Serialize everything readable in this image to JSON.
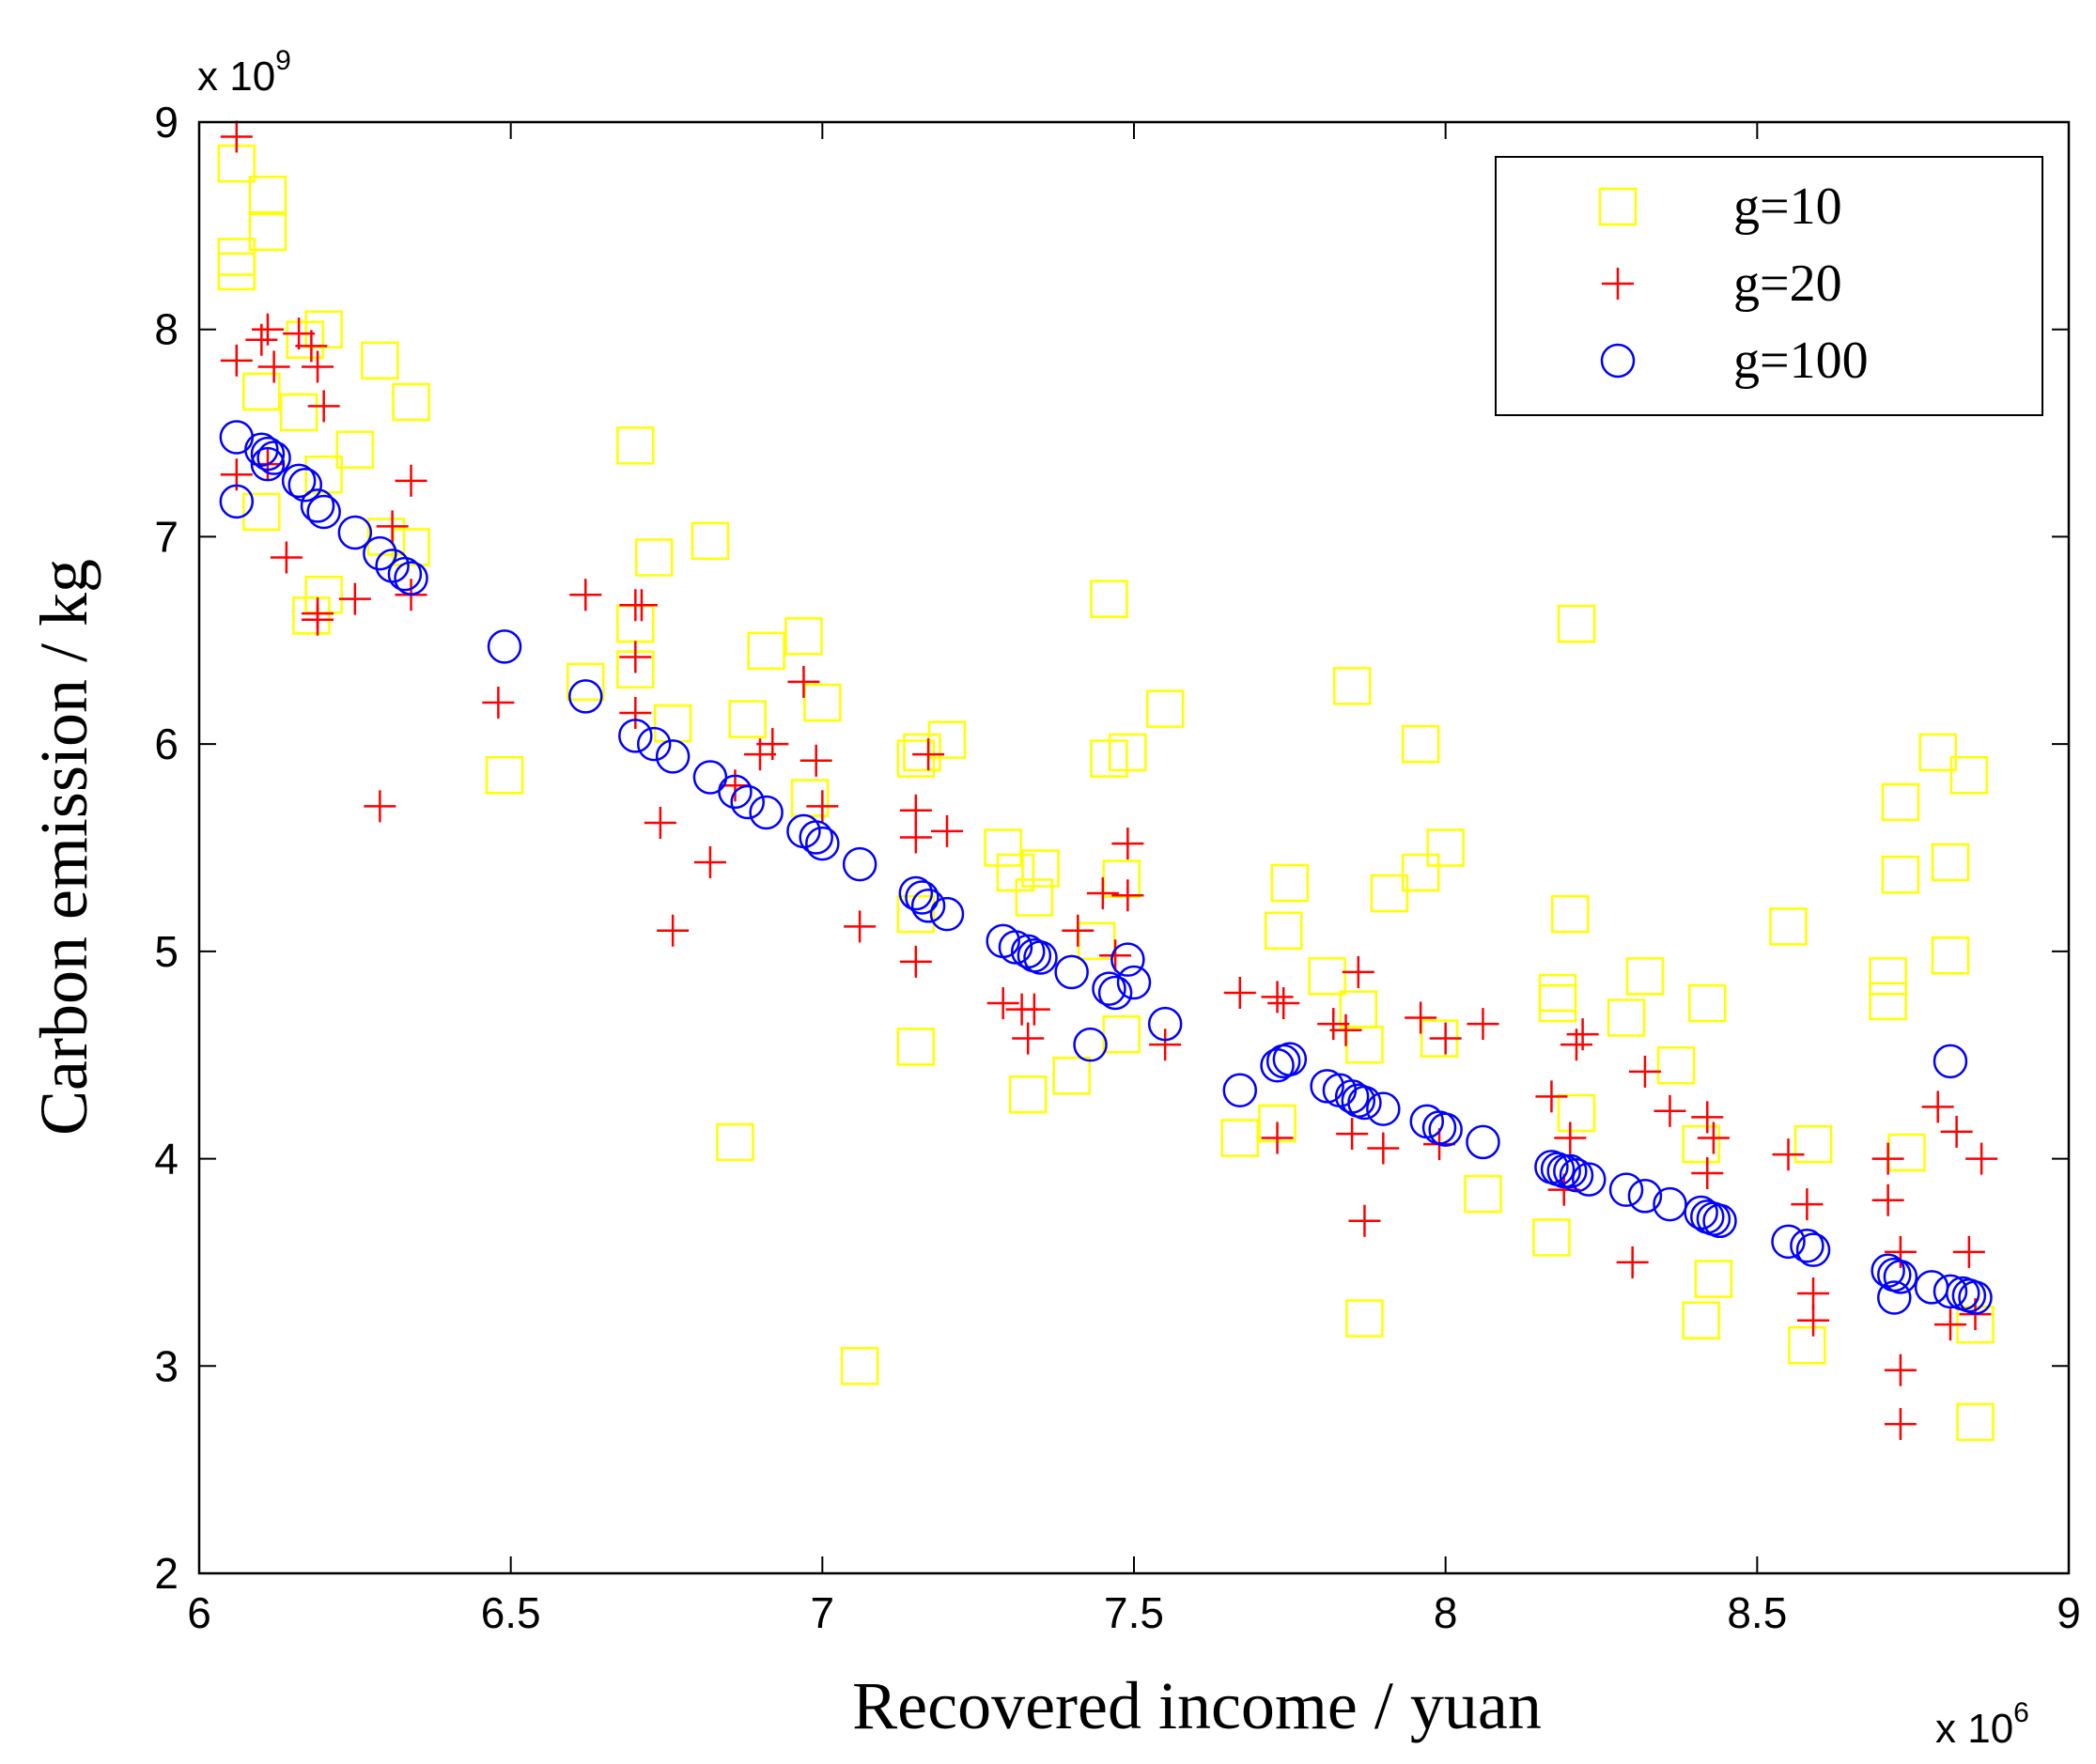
{
  "chart_data": {
    "type": "scatter",
    "title": "",
    "xlabel": "Recovered income / yuan",
    "ylabel": "Carbon emission / kg",
    "x_multiplier_label": "x 10",
    "x_multiplier_exp": "6",
    "y_multiplier_label": "x 10",
    "y_multiplier_exp": "9",
    "xlim": [
      6,
      9
    ],
    "ylim": [
      2,
      9
    ],
    "xticks": [
      6,
      6.5,
      7,
      7.5,
      8,
      8.5,
      9
    ],
    "xtick_labels": [
      "6",
      "6.5",
      "7",
      "7.5",
      "8",
      "8.5",
      "9"
    ],
    "yticks": [
      2,
      3,
      4,
      5,
      6,
      7,
      8,
      9
    ],
    "ytick_labels": [
      "2",
      "3",
      "4",
      "5",
      "6",
      "7",
      "8",
      "9"
    ],
    "grid": false,
    "legend_position": "top-right",
    "series": [
      {
        "name": "g=10",
        "marker": "square",
        "color": "#ffff00",
        "points": [
          [
            6.06,
            8.8
          ],
          [
            6.06,
            8.35
          ],
          [
            6.06,
            8.28
          ],
          [
            6.11,
            8.65
          ],
          [
            6.11,
            8.47
          ],
          [
            6.1,
            7.7
          ],
          [
            6.17,
            7.95
          ],
          [
            6.2,
            8.0
          ],
          [
            6.16,
            7.6
          ],
          [
            6.29,
            7.85
          ],
          [
            6.34,
            7.65
          ],
          [
            6.25,
            7.42
          ],
          [
            6.1,
            7.12
          ],
          [
            6.2,
            7.3
          ],
          [
            6.3,
            7.0
          ],
          [
            6.34,
            6.95
          ],
          [
            6.2,
            6.72
          ],
          [
            6.18,
            6.62
          ],
          [
            6.49,
            5.85
          ],
          [
            6.62,
            6.3
          ],
          [
            6.7,
            7.44
          ],
          [
            6.73,
            6.9
          ],
          [
            6.7,
            6.58
          ],
          [
            6.7,
            6.36
          ],
          [
            6.76,
            6.1
          ],
          [
            6.82,
            6.98
          ],
          [
            6.88,
            6.12
          ],
          [
            6.91,
            6.45
          ],
          [
            6.97,
            6.52
          ],
          [
            7.0,
            6.2
          ],
          [
            6.98,
            5.74
          ],
          [
            7.15,
            5.93
          ],
          [
            7.16,
            5.96
          ],
          [
            7.2,
            6.02
          ],
          [
            6.86,
            4.08
          ],
          [
            7.06,
            3.0
          ],
          [
            7.15,
            5.18
          ],
          [
            7.15,
            4.54
          ],
          [
            7.29,
            5.5
          ],
          [
            7.31,
            5.38
          ],
          [
            7.35,
            5.4
          ],
          [
            7.34,
            5.26
          ],
          [
            7.33,
            4.31
          ],
          [
            7.4,
            4.4
          ],
          [
            7.46,
            6.7
          ],
          [
            7.55,
            6.17
          ],
          [
            7.46,
            5.93
          ],
          [
            7.49,
            5.96
          ],
          [
            7.48,
            5.35
          ],
          [
            7.44,
            5.05
          ],
          [
            7.48,
            4.6
          ],
          [
            7.67,
            4.1
          ],
          [
            7.73,
            4.17
          ],
          [
            7.74,
            5.1
          ],
          [
            7.75,
            5.33
          ],
          [
            7.81,
            4.88
          ],
          [
            7.85,
            6.28
          ],
          [
            7.86,
            4.72
          ],
          [
            7.87,
            4.55
          ],
          [
            7.87,
            3.23
          ],
          [
            7.91,
            5.28
          ],
          [
            7.96,
            6.0
          ],
          [
            7.96,
            5.38
          ],
          [
            8.0,
            5.5
          ],
          [
            7.99,
            4.58
          ],
          [
            8.06,
            3.83
          ],
          [
            8.21,
            6.58
          ],
          [
            8.2,
            5.18
          ],
          [
            8.18,
            4.8
          ],
          [
            8.18,
            4.75
          ],
          [
            8.21,
            4.22
          ],
          [
            8.17,
            3.62
          ],
          [
            8.29,
            4.68
          ],
          [
            8.32,
            4.88
          ],
          [
            8.37,
            4.45
          ],
          [
            8.42,
            4.75
          ],
          [
            8.41,
            4.07
          ],
          [
            8.43,
            3.42
          ],
          [
            8.41,
            3.22
          ],
          [
            8.55,
            5.12
          ],
          [
            8.59,
            4.07
          ],
          [
            8.58,
            3.1
          ],
          [
            8.71,
            4.88
          ],
          [
            8.71,
            4.76
          ],
          [
            8.73,
            5.72
          ],
          [
            8.73,
            5.37
          ],
          [
            8.74,
            4.03
          ],
          [
            8.79,
            5.96
          ],
          [
            8.81,
            5.43
          ],
          [
            8.81,
            4.98
          ],
          [
            8.84,
            5.85
          ],
          [
            8.85,
            3.2
          ],
          [
            8.85,
            2.73
          ]
        ]
      },
      {
        "name": "g=20",
        "marker": "plus",
        "color": "#ff0000",
        "points": [
          [
            6.06,
            8.93
          ],
          [
            6.06,
            7.85
          ],
          [
            6.1,
            7.95
          ],
          [
            6.11,
            8.0
          ],
          [
            6.12,
            7.82
          ],
          [
            6.16,
            7.98
          ],
          [
            6.18,
            7.92
          ],
          [
            6.19,
            7.82
          ],
          [
            6.2,
            7.63
          ],
          [
            6.06,
            7.3
          ],
          [
            6.11,
            7.35
          ],
          [
            6.14,
            6.9
          ],
          [
            6.19,
            6.6
          ],
          [
            6.19,
            6.63
          ],
          [
            6.25,
            6.7
          ],
          [
            6.31,
            7.05
          ],
          [
            6.34,
            7.27
          ],
          [
            6.34,
            6.72
          ],
          [
            6.48,
            6.2
          ],
          [
            6.29,
            5.7
          ],
          [
            6.62,
            6.72
          ],
          [
            6.7,
            6.67
          ],
          [
            6.71,
            6.67
          ],
          [
            6.7,
            6.42
          ],
          [
            6.7,
            6.15
          ],
          [
            6.74,
            5.62
          ],
          [
            6.76,
            5.1
          ],
          [
            6.82,
            5.43
          ],
          [
            6.86,
            5.8
          ],
          [
            6.9,
            5.95
          ],
          [
            6.92,
            6.0
          ],
          [
            6.97,
            6.3
          ],
          [
            6.99,
            5.92
          ],
          [
            7.0,
            5.7
          ],
          [
            7.06,
            5.12
          ],
          [
            7.15,
            5.68
          ],
          [
            7.15,
            5.55
          ],
          [
            7.17,
            5.95
          ],
          [
            7.2,
            5.58
          ],
          [
            7.15,
            4.95
          ],
          [
            7.29,
            4.75
          ],
          [
            7.32,
            4.72
          ],
          [
            7.33,
            4.58
          ],
          [
            7.34,
            4.72
          ],
          [
            7.41,
            5.1
          ],
          [
            7.45,
            5.28
          ],
          [
            7.47,
            4.98
          ],
          [
            7.49,
            5.52
          ],
          [
            7.49,
            5.27
          ],
          [
            7.55,
            4.55
          ],
          [
            7.67,
            4.8
          ],
          [
            7.73,
            4.78
          ],
          [
            7.74,
            4.75
          ],
          [
            7.73,
            4.1
          ],
          [
            7.82,
            4.65
          ],
          [
            7.84,
            4.62
          ],
          [
            7.86,
            4.9
          ],
          [
            7.85,
            4.12
          ],
          [
            7.87,
            3.7
          ],
          [
            7.9,
            4.05
          ],
          [
            7.96,
            4.68
          ],
          [
            8.0,
            4.58
          ],
          [
            8.06,
            4.65
          ],
          [
            7.99,
            4.07
          ],
          [
            8.17,
            4.3
          ],
          [
            8.2,
            4.1
          ],
          [
            8.19,
            3.85
          ],
          [
            8.21,
            4.55
          ],
          [
            8.22,
            4.6
          ],
          [
            8.32,
            4.42
          ],
          [
            8.3,
            3.5
          ],
          [
            8.36,
            4.23
          ],
          [
            8.42,
            4.2
          ],
          [
            8.42,
            3.93
          ],
          [
            8.43,
            4.1
          ],
          [
            8.55,
            4.02
          ],
          [
            8.58,
            3.78
          ],
          [
            8.59,
            3.22
          ],
          [
            8.59,
            3.35
          ],
          [
            8.71,
            4.0
          ],
          [
            8.71,
            3.8
          ],
          [
            8.73,
            3.55
          ],
          [
            8.73,
            2.98
          ],
          [
            8.73,
            2.72
          ],
          [
            8.79,
            4.25
          ],
          [
            8.82,
            4.13
          ],
          [
            8.81,
            3.2
          ],
          [
            8.84,
            3.55
          ],
          [
            8.86,
            4.0
          ],
          [
            8.85,
            3.25
          ]
        ]
      },
      {
        "name": "g=100",
        "marker": "circle",
        "color": "#0000ff",
        "points": [
          [
            6.06,
            7.48
          ],
          [
            6.1,
            7.42
          ],
          [
            6.11,
            7.4
          ],
          [
            6.12,
            7.38
          ],
          [
            6.11,
            7.35
          ],
          [
            6.16,
            7.27
          ],
          [
            6.17,
            7.25
          ],
          [
            6.19,
            7.15
          ],
          [
            6.2,
            7.12
          ],
          [
            6.25,
            7.02
          ],
          [
            6.29,
            6.92
          ],
          [
            6.31,
            6.86
          ],
          [
            6.33,
            6.82
          ],
          [
            6.34,
            6.8
          ],
          [
            6.06,
            7.17
          ],
          [
            6.49,
            6.47
          ],
          [
            6.62,
            6.23
          ],
          [
            6.7,
            6.04
          ],
          [
            6.73,
            6.0
          ],
          [
            6.76,
            5.94
          ],
          [
            6.82,
            5.84
          ],
          [
            6.86,
            5.77
          ],
          [
            6.88,
            5.72
          ],
          [
            6.91,
            5.67
          ],
          [
            6.97,
            5.58
          ],
          [
            6.99,
            5.55
          ],
          [
            7.0,
            5.52
          ],
          [
            7.06,
            5.42
          ],
          [
            7.15,
            5.28
          ],
          [
            7.16,
            5.26
          ],
          [
            7.17,
            5.22
          ],
          [
            7.2,
            5.18
          ],
          [
            7.29,
            5.05
          ],
          [
            7.31,
            5.02
          ],
          [
            7.33,
            5.0
          ],
          [
            7.34,
            4.98
          ],
          [
            7.35,
            4.97
          ],
          [
            7.4,
            4.9
          ],
          [
            7.46,
            4.82
          ],
          [
            7.47,
            4.8
          ],
          [
            7.49,
            4.96
          ],
          [
            7.5,
            4.85
          ],
          [
            7.43,
            4.55
          ],
          [
            7.55,
            4.65
          ],
          [
            7.67,
            4.33
          ],
          [
            7.73,
            4.45
          ],
          [
            7.74,
            4.47
          ],
          [
            7.75,
            4.48
          ],
          [
            7.81,
            4.35
          ],
          [
            7.83,
            4.33
          ],
          [
            7.85,
            4.3
          ],
          [
            7.86,
            4.28
          ],
          [
            7.87,
            4.27
          ],
          [
            7.9,
            4.24
          ],
          [
            7.97,
            4.18
          ],
          [
            7.99,
            4.15
          ],
          [
            8.0,
            4.14
          ],
          [
            8.06,
            4.08
          ],
          [
            8.17,
            3.96
          ],
          [
            8.18,
            3.95
          ],
          [
            8.19,
            3.94
          ],
          [
            8.2,
            3.94
          ],
          [
            8.21,
            3.92
          ],
          [
            8.23,
            3.9
          ],
          [
            8.29,
            3.85
          ],
          [
            8.32,
            3.82
          ],
          [
            8.36,
            3.78
          ],
          [
            8.41,
            3.74
          ],
          [
            8.42,
            3.72
          ],
          [
            8.43,
            3.71
          ],
          [
            8.44,
            3.7
          ],
          [
            8.55,
            3.6
          ],
          [
            8.58,
            3.58
          ],
          [
            8.59,
            3.56
          ],
          [
            8.71,
            3.46
          ],
          [
            8.72,
            3.44
          ],
          [
            8.73,
            3.43
          ],
          [
            8.72,
            3.33
          ],
          [
            8.78,
            3.38
          ],
          [
            8.81,
            3.36
          ],
          [
            8.83,
            3.35
          ],
          [
            8.84,
            3.34
          ],
          [
            8.85,
            3.33
          ],
          [
            8.81,
            4.47
          ]
        ]
      }
    ]
  }
}
